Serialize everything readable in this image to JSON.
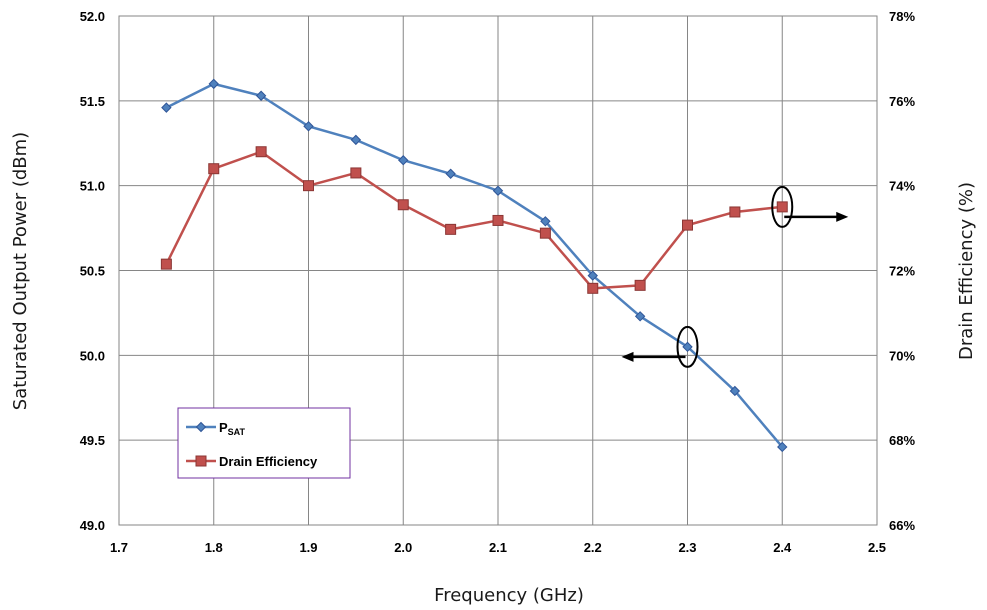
{
  "chart_data": {
    "type": "line",
    "xlabel": "Frequency (GHz)",
    "ylabel_left": "Saturated Output Power (dBm)",
    "ylabel_right": "Drain Efficiency (%)",
    "xlim": [
      1.7,
      2.5
    ],
    "ylim_left": [
      49.0,
      52.0
    ],
    "ylim_right": [
      66,
      78
    ],
    "x_ticks": [
      "1.7",
      "1.8",
      "1.9",
      "2.0",
      "2.1",
      "2.2",
      "2.3",
      "2.4",
      "2.5"
    ],
    "y_ticks_left": [
      "49.0",
      "49.5",
      "50.0",
      "50.5",
      "51.0",
      "51.5",
      "52.0"
    ],
    "y_ticks_right": [
      "66%",
      "68%",
      "70%",
      "72%",
      "74%",
      "76%",
      "78%"
    ],
    "grid": true,
    "legend_position": "bottom-left",
    "legend": [
      {
        "label_main": "P",
        "label_sub": "SAT",
        "series": 0
      },
      {
        "label_main": "Drain Efficiency",
        "label_sub": "",
        "series": 1
      }
    ],
    "series": [
      {
        "name": "PSAT",
        "axis": "left",
        "color": "#4F81BD",
        "marker": "diamond",
        "x": [
          1.75,
          1.8,
          1.85,
          1.9,
          1.95,
          2.0,
          2.05,
          2.1,
          2.15,
          2.2,
          2.25,
          2.3,
          2.35,
          2.4
        ],
        "y": [
          51.46,
          51.6,
          51.53,
          51.35,
          51.27,
          51.15,
          51.07,
          50.97,
          50.79,
          50.47,
          50.23,
          50.05,
          49.79,
          49.46
        ]
      },
      {
        "name": "Drain Efficiency",
        "axis": "right",
        "color": "#C0504D",
        "marker": "square",
        "x": [
          1.75,
          1.8,
          1.85,
          1.9,
          1.95,
          2.0,
          2.05,
          2.1,
          2.15,
          2.2,
          2.25,
          2.3,
          2.35,
          2.4
        ],
        "y": [
          72.15,
          74.4,
          74.8,
          74.0,
          74.3,
          73.55,
          72.97,
          73.18,
          72.88,
          71.58,
          71.65,
          73.07,
          73.38,
          73.5
        ]
      }
    ],
    "annotations": [
      {
        "type": "ellipse-arrow",
        "x": 2.3,
        "y_left": 50.05,
        "direction": "left",
        "series": 0
      },
      {
        "type": "ellipse-arrow",
        "x": 2.4,
        "y_right": 73.5,
        "direction": "right",
        "series": 1
      }
    ]
  }
}
